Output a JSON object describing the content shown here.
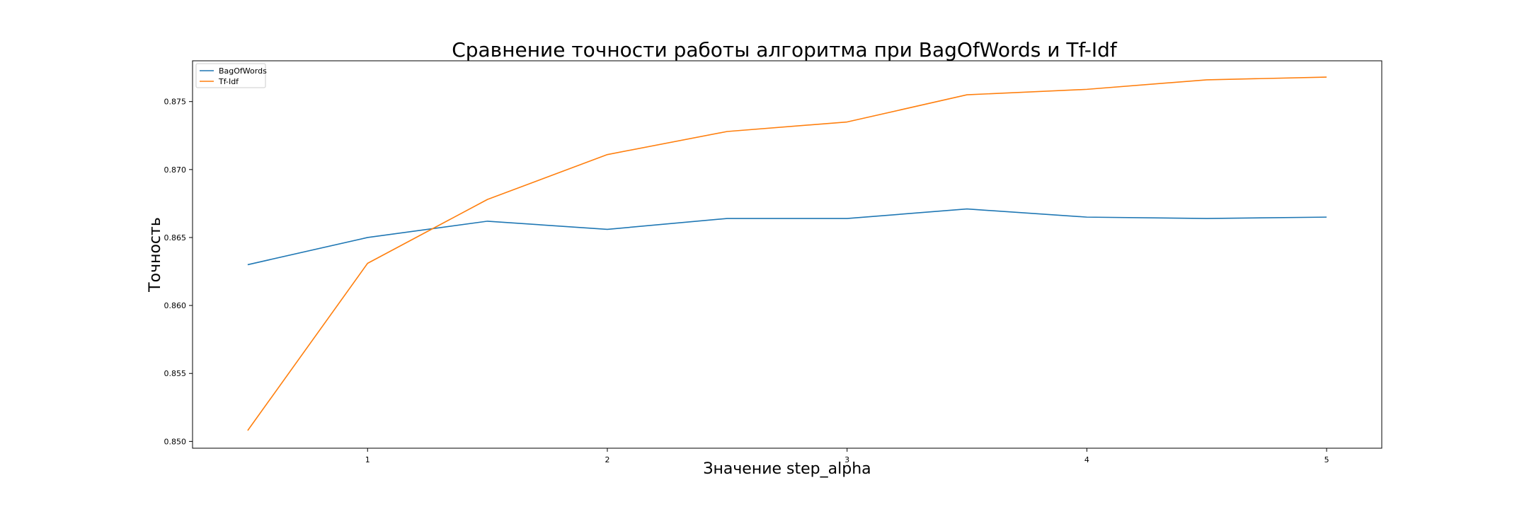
{
  "chart_data": {
    "type": "line",
    "title": "Сравнение точности работы алгоритма при BagOfWords и   Tf-Idf",
    "xlabel": "Значение step_alpha",
    "ylabel": "Точность",
    "x": [
      0.5,
      1,
      1.5,
      2,
      2.5,
      3,
      3.5,
      4,
      4.5,
      5
    ],
    "xlim": [
      0.27,
      5.23
    ],
    "ylim": [
      0.8495,
      0.878
    ],
    "xticks": [
      1,
      2,
      3,
      4,
      5
    ],
    "xtick_labels": [
      "1",
      "2",
      "3",
      "4",
      "5"
    ],
    "yticks": [
      0.85,
      0.855,
      0.86,
      0.865,
      0.87,
      0.875
    ],
    "ytick_labels": [
      "0.850",
      "0.855",
      "0.860",
      "0.865",
      "0.870",
      "0.875"
    ],
    "grid": false,
    "legend_position": "top-left",
    "series": [
      {
        "name": "BagOfWords",
        "color": "#1f77b4",
        "values": [
          0.863,
          0.865,
          0.8662,
          0.8656,
          0.8664,
          0.8664,
          0.8671,
          0.8665,
          0.8664,
          0.8665
        ]
      },
      {
        "name": "Tf-Idf",
        "color": "#ff7f0e",
        "values": [
          0.8508,
          0.8631,
          0.8678,
          0.8711,
          0.8728,
          0.8735,
          0.8755,
          0.8759,
          0.8766,
          0.8768
        ]
      }
    ]
  }
}
